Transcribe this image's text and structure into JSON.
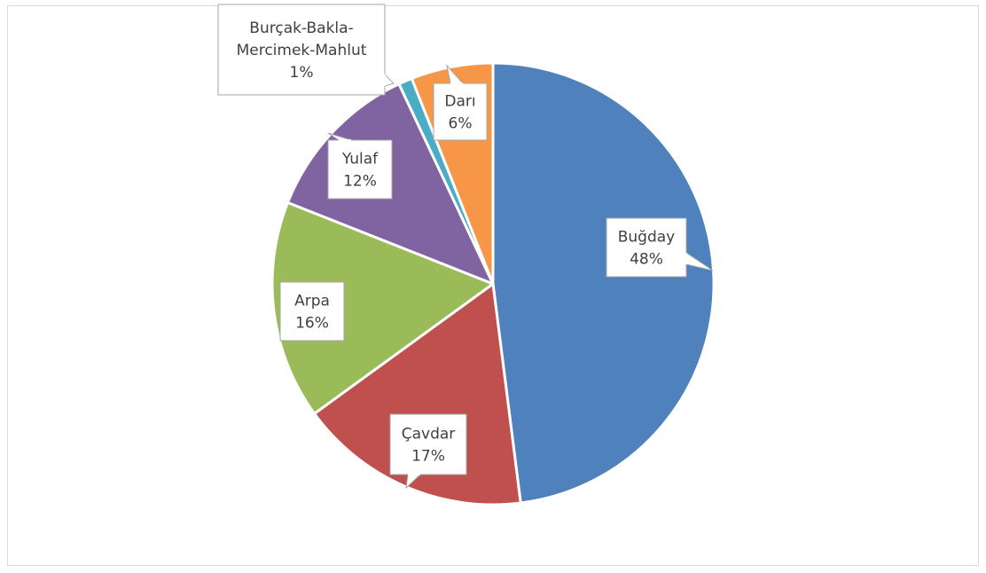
{
  "chart_data": {
    "type": "pie",
    "title": "",
    "categories": [
      "Buğday",
      "Çavdar",
      "Arpa",
      "Yulaf",
      "Burçak-Bakla-Mercimek-Mahlut",
      "Darı"
    ],
    "values": [
      48,
      17,
      16,
      12,
      1,
      6
    ],
    "unit": "%",
    "colors": [
      "#4f81bd",
      "#c0504d",
      "#9bbb59",
      "#8064a2",
      "#4bacc6",
      "#f79646"
    ],
    "data_labels": [
      {
        "lines": [
          "Buğday",
          "48%"
        ]
      },
      {
        "lines": [
          "Çavdar",
          "17%"
        ]
      },
      {
        "lines": [
          "Arpa",
          "16%"
        ]
      },
      {
        "lines": [
          "Yulaf",
          "12%"
        ]
      },
      {
        "lines": [
          "Burçak-Bakla-",
          "Mercimek-Mahlut",
          "1%"
        ]
      },
      {
        "lines": [
          "Darı",
          "6%"
        ]
      }
    ],
    "legend": "none",
    "label_style": "callout"
  }
}
